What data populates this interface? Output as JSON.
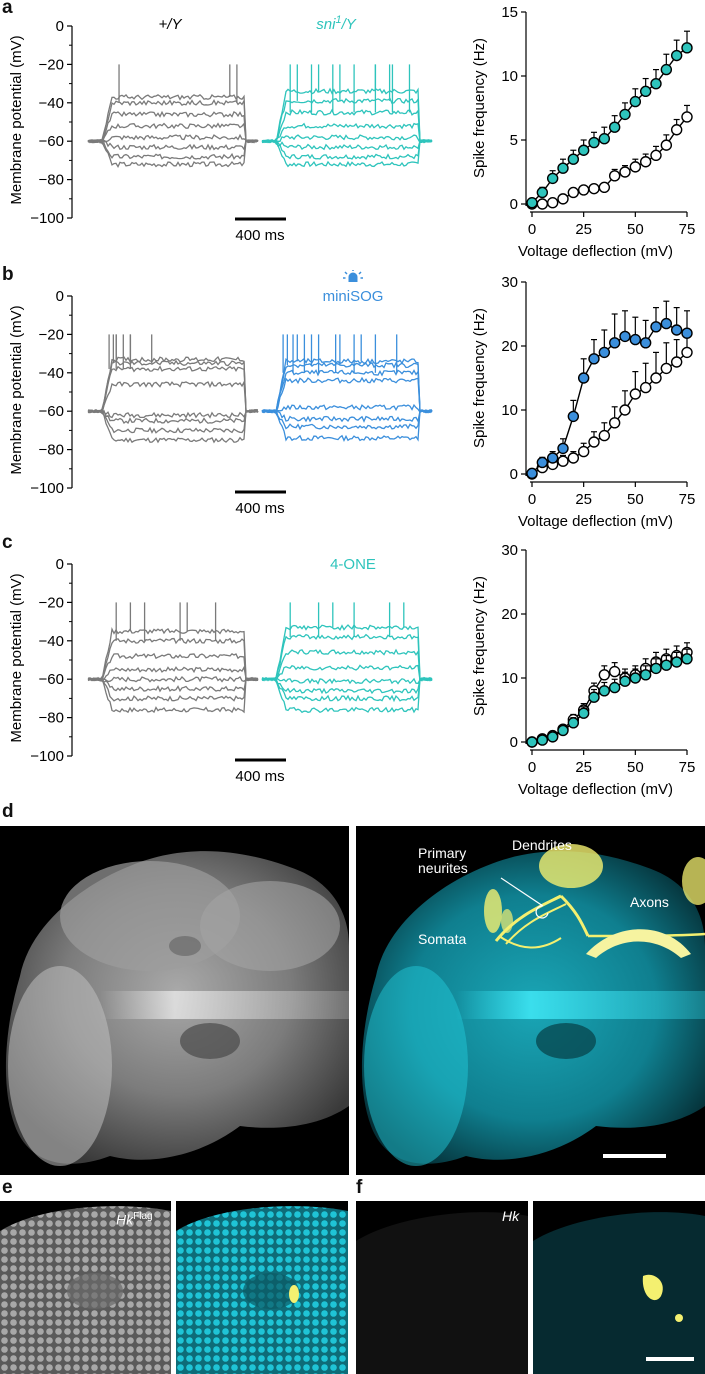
{
  "panels": {
    "a": {
      "letter": "a",
      "trace_y_axis": {
        "label": "Membrane potential (mV)",
        "ticks": [
          "0",
          "−20",
          "−40",
          "−60",
          "−80",
          "−100"
        ]
      },
      "control_label": "+/Y",
      "experimental_label_main": "sni",
      "experimental_label_sup": "1",
      "experimental_label_tail": "/Y",
      "scale_bar": "400 ms"
    },
    "b": {
      "letter": "b",
      "trace_y_axis": {
        "label": "Membrane potential (mV)",
        "ticks": [
          "0",
          "−20",
          "−40",
          "−60",
          "−80",
          "−100"
        ]
      },
      "experimental_label": "miniSOG",
      "light_icon": "light-bulb-icon",
      "scale_bar": "400 ms"
    },
    "c": {
      "letter": "c",
      "trace_y_axis": {
        "label": "Membrane potential (mV)",
        "ticks": [
          "0",
          "−20",
          "−40",
          "−60",
          "−80",
          "−100"
        ]
      },
      "experimental_label": "4-ONE",
      "scale_bar": "400 ms"
    },
    "d": {
      "letter": "d",
      "labels": {
        "primary": "Primary",
        "neurites": "neurites",
        "dendrites": "Dendrites",
        "axons": "Axons",
        "somata": "Somata"
      }
    },
    "e": {
      "letter": "e",
      "label_main": "Hk",
      "label_sup": "Flag"
    },
    "f": {
      "letter": "f",
      "label": "Hk"
    }
  },
  "colors": {
    "control": "#7a7a7a",
    "sni": "#2ec4bc",
    "minisog": "#3b8fdc",
    "four_one": "#2ec4bc",
    "cyan_tissue": "#17c8d8",
    "yellow_signal": "#f4f070"
  },
  "chart_data": [
    {
      "type": "scatter",
      "panel": "a",
      "xlabel": "Voltage deflection (mV)",
      "ylabel": "Spike frequency (Hz)",
      "xlim": [
        0,
        75
      ],
      "ylim": [
        0,
        15
      ],
      "xticks": [
        0,
        25,
        50,
        75
      ],
      "yticks": [
        0,
        5,
        10,
        15
      ],
      "x": [
        0,
        5,
        10,
        15,
        20,
        25,
        30,
        35,
        40,
        45,
        50,
        55,
        60,
        65,
        70,
        75
      ],
      "series": [
        {
          "color": "#ffffff",
          "values": [
            0,
            0,
            0.1,
            0.4,
            0.9,
            1.1,
            1.2,
            1.3,
            2.2,
            2.5,
            2.9,
            3.3,
            3.8,
            4.6,
            5.8,
            6.8
          ],
          "err": [
            0,
            0,
            0.1,
            0.2,
            0.3,
            0.3,
            0.3,
            0.3,
            0.5,
            0.5,
            0.6,
            0.6,
            0.7,
            0.8,
            0.8,
            0.9
          ]
        },
        {
          "color": "#2ec4bc",
          "values": [
            0.1,
            0.9,
            2.0,
            2.8,
            3.5,
            4.2,
            4.8,
            5.1,
            6.0,
            7.0,
            8.0,
            8.8,
            9.4,
            10.5,
            11.6,
            12.2
          ],
          "err": [
            0.2,
            0.4,
            0.6,
            0.7,
            0.7,
            0.8,
            0.8,
            0.9,
            0.9,
            0.9,
            1.0,
            1.0,
            1.1,
            1.2,
            1.2,
            1.3
          ]
        }
      ]
    },
    {
      "type": "scatter",
      "panel": "b",
      "xlabel": "Voltage deflection (mV)",
      "ylabel": "Spike frequency (Hz)",
      "xlim": [
        0,
        75
      ],
      "ylim": [
        0,
        30
      ],
      "xticks": [
        0,
        25,
        50,
        75
      ],
      "yticks": [
        0,
        10,
        20,
        30
      ],
      "x": [
        0,
        5,
        10,
        15,
        20,
        25,
        30,
        35,
        40,
        45,
        50,
        55,
        60,
        65,
        70,
        75
      ],
      "series": [
        {
          "color": "#ffffff",
          "values": [
            0,
            1.0,
            1.5,
            2.0,
            2.5,
            3.5,
            5.0,
            6.0,
            8.0,
            10.0,
            12.5,
            13.5,
            15.0,
            16.5,
            17.5,
            19.0
          ],
          "err": [
            0,
            0.5,
            0.7,
            0.9,
            1.0,
            1.3,
            1.6,
            2.0,
            2.5,
            3.0,
            3.5,
            3.8,
            4.0,
            4.0,
            3.5,
            2.5
          ]
        },
        {
          "color": "#3b8fdc",
          "values": [
            0.1,
            1.8,
            2.5,
            4.0,
            9.0,
            15.0,
            18.0,
            19.0,
            20.5,
            21.5,
            21.0,
            20.5,
            23.0,
            23.5,
            22.5,
            22.0
          ],
          "err": [
            0.3,
            0.8,
            1.0,
            1.5,
            2.5,
            3.0,
            3.0,
            3.5,
            4.5,
            4.0,
            3.5,
            3.5,
            3.0,
            3.5,
            3.5,
            3.5
          ]
        }
      ]
    },
    {
      "type": "scatter",
      "panel": "c",
      "xlabel": "Voltage deflection (mV)",
      "ylabel": "Spike frequency (Hz)",
      "xlim": [
        0,
        75
      ],
      "ylim": [
        0,
        30
      ],
      "xticks": [
        0,
        25,
        50,
        75
      ],
      "yticks": [
        0,
        10,
        20,
        30
      ],
      "x": [
        0,
        5,
        10,
        15,
        20,
        25,
        30,
        35,
        40,
        45,
        50,
        55,
        60,
        65,
        70,
        75
      ],
      "series": [
        {
          "color": "#ffffff",
          "values": [
            0,
            0.5,
            1.0,
            2.0,
            3.5,
            5.0,
            8.0,
            10.5,
            11.0,
            10.0,
            10.5,
            11.5,
            12.5,
            13.0,
            13.5,
            14.0
          ],
          "err": [
            0,
            0.3,
            0.4,
            0.6,
            0.8,
            1.0,
            1.2,
            1.4,
            1.4,
            1.4,
            1.4,
            1.5,
            1.5,
            1.5,
            1.5,
            1.5
          ]
        },
        {
          "color": "#2ec4bc",
          "values": [
            0,
            0.3,
            0.8,
            1.8,
            3.0,
            4.5,
            7.0,
            8.0,
            8.5,
            9.5,
            10.0,
            10.5,
            11.5,
            12.0,
            12.5,
            13.0
          ],
          "err": [
            0,
            0.3,
            0.4,
            0.6,
            0.8,
            1.0,
            1.2,
            1.3,
            1.3,
            1.4,
            1.4,
            1.4,
            1.5,
            1.5,
            1.5,
            1.5
          ]
        }
      ]
    }
  ]
}
